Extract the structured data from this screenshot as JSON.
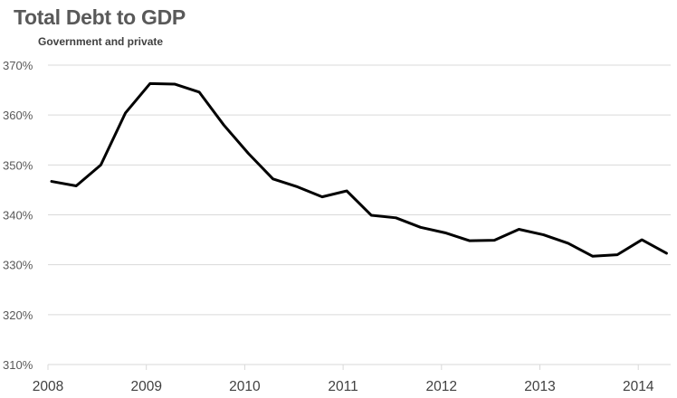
{
  "chart_data": {
    "type": "line",
    "title": "Total Debt to GDP",
    "subtitle": "Government and private",
    "xlabel": "",
    "ylabel": "",
    "ylim": [
      310,
      370
    ],
    "yticks": [
      370,
      360,
      350,
      340,
      330,
      320,
      310
    ],
    "ytick_labels": [
      "370%",
      "360%",
      "350%",
      "340%",
      "330%",
      "320%",
      "310%"
    ],
    "xlim": [
      2008,
      2014.33
    ],
    "xticks": [
      2008,
      2009,
      2010,
      2011,
      2012,
      2013,
      2014
    ],
    "xtick_labels": [
      "2008",
      "2009",
      "2010",
      "2011",
      "2012",
      "2013",
      "2014"
    ],
    "grid": "horizontal",
    "legend": "none",
    "series": [
      {
        "name": "Total Debt to GDP",
        "color": "#000000",
        "x": [
          2008.0,
          2008.25,
          2008.5,
          2008.75,
          2009.0,
          2009.25,
          2009.5,
          2009.75,
          2010.0,
          2010.25,
          2010.5,
          2010.75,
          2011.0,
          2011.25,
          2011.5,
          2011.75,
          2012.0,
          2012.25,
          2012.5,
          2012.75,
          2013.0,
          2013.25,
          2013.5,
          2013.75,
          2014.0,
          2014.25
        ],
        "values": [
          346.7,
          345.8,
          350.0,
          360.4,
          366.3,
          366.2,
          364.6,
          358.0,
          352.3,
          347.2,
          345.6,
          343.6,
          344.8,
          339.9,
          339.4,
          337.5,
          336.4,
          334.8,
          334.9,
          337.1,
          336.0,
          334.3,
          331.7,
          332.0,
          335.0,
          332.3
        ]
      }
    ]
  }
}
